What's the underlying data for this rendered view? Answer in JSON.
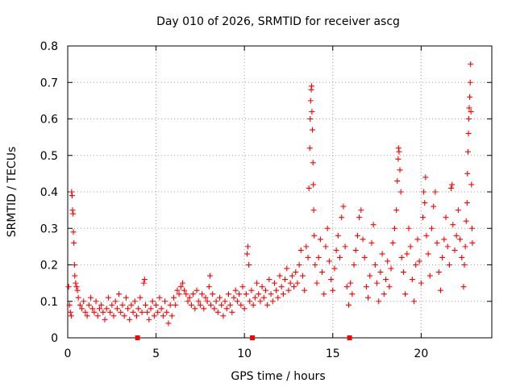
{
  "chart_data": {
    "type": "scatter",
    "title": "Day 010 of 2026, SRMTID for receiver ascg",
    "xlabel": "GPS time / hours",
    "ylabel": "SRMTID / TECUs",
    "xlim": [
      0,
      24
    ],
    "ylim": [
      0,
      0.8
    ],
    "xticks": [
      0,
      5,
      10,
      15,
      20
    ],
    "xtick_labels": [
      "0",
      "5",
      "10",
      "15",
      "20"
    ],
    "yticks": [
      0,
      0.1,
      0.2,
      0.3,
      0.4,
      0.5,
      0.6,
      0.7,
      0.8
    ],
    "ytick_labels": [
      "0",
      "0.1",
      "0.2",
      "0.3",
      "0.4",
      "0.5",
      "0.6",
      "0.7",
      "0.8"
    ],
    "grid": true,
    "marker": "plus",
    "color": "#ff0000",
    "series": [
      {
        "name": "SRMTID",
        "points": [
          [
            0.05,
            0.14
          ],
          [
            0.1,
            0.09
          ],
          [
            0.15,
            0.07
          ],
          [
            0.2,
            0.06
          ],
          [
            0.22,
            0.4
          ],
          [
            0.25,
            0.39
          ],
          [
            0.27,
            0.35
          ],
          [
            0.3,
            0.34
          ],
          [
            0.32,
            0.29
          ],
          [
            0.35,
            0.26
          ],
          [
            0.38,
            0.2
          ],
          [
            0.4,
            0.17
          ],
          [
            0.45,
            0.15
          ],
          [
            0.5,
            0.14
          ],
          [
            0.55,
            0.13
          ],
          [
            0.6,
            0.11
          ],
          [
            0.7,
            0.09
          ],
          [
            0.8,
            0.08
          ],
          [
            0.9,
            0.1
          ],
          [
            1.0,
            0.07
          ],
          [
            1.1,
            0.06
          ],
          [
            1.2,
            0.09
          ],
          [
            1.3,
            0.11
          ],
          [
            1.4,
            0.08
          ],
          [
            1.5,
            0.07
          ],
          [
            1.6,
            0.1
          ],
          [
            1.7,
            0.06
          ],
          [
            1.8,
            0.08
          ],
          [
            1.9,
            0.09
          ],
          [
            2.0,
            0.07
          ],
          [
            2.1,
            0.05
          ],
          [
            2.2,
            0.08
          ],
          [
            2.3,
            0.11
          ],
          [
            2.4,
            0.07
          ],
          [
            2.5,
            0.09
          ],
          [
            2.6,
            0.06
          ],
          [
            2.7,
            0.1
          ],
          [
            2.8,
            0.08
          ],
          [
            2.9,
            0.12
          ],
          [
            3.0,
            0.07
          ],
          [
            3.1,
            0.09
          ],
          [
            3.2,
            0.06
          ],
          [
            3.3,
            0.11
          ],
          [
            3.4,
            0.08
          ],
          [
            3.5,
            0.05
          ],
          [
            3.6,
            0.09
          ],
          [
            3.7,
            0.07
          ],
          [
            3.8,
            0.1
          ],
          [
            3.9,
            0.06
          ],
          [
            4.0,
            0.08
          ],
          [
            4.1,
            0.11
          ],
          [
            4.2,
            0.07
          ],
          [
            4.3,
            0.15
          ],
          [
            4.35,
            0.16
          ],
          [
            4.4,
            0.09
          ],
          [
            4.5,
            0.07
          ],
          [
            4.6,
            0.05
          ],
          [
            4.7,
            0.08
          ],
          [
            4.8,
            0.1
          ],
          [
            4.9,
            0.06
          ],
          [
            5.0,
            0.09
          ],
          [
            5.1,
            0.07
          ],
          [
            5.2,
            0.11
          ],
          [
            5.3,
            0.08
          ],
          [
            5.4,
            0.06
          ],
          [
            5.5,
            0.1
          ],
          [
            5.6,
            0.07
          ],
          [
            5.7,
            0.04
          ],
          [
            5.8,
            0.09
          ],
          [
            5.9,
            0.06
          ],
          [
            6.0,
            0.11
          ],
          [
            6.1,
            0.09
          ],
          [
            6.2,
            0.13
          ],
          [
            6.3,
            0.12
          ],
          [
            6.4,
            0.14
          ],
          [
            6.5,
            0.15
          ],
          [
            6.6,
            0.13
          ],
          [
            6.7,
            0.12
          ],
          [
            6.8,
            0.1
          ],
          [
            6.9,
            0.11
          ],
          [
            7.0,
            0.09
          ],
          [
            7.1,
            0.12
          ],
          [
            7.2,
            0.08
          ],
          [
            7.3,
            0.13
          ],
          [
            7.4,
            0.1
          ],
          [
            7.5,
            0.09
          ],
          [
            7.6,
            0.12
          ],
          [
            7.7,
            0.08
          ],
          [
            7.8,
            0.11
          ],
          [
            7.9,
            0.1
          ],
          [
            8.0,
            0.14
          ],
          [
            8.05,
            0.17
          ],
          [
            8.1,
            0.09
          ],
          [
            8.2,
            0.12
          ],
          [
            8.3,
            0.08
          ],
          [
            8.4,
            0.1
          ],
          [
            8.5,
            0.07
          ],
          [
            8.6,
            0.11
          ],
          [
            8.7,
            0.09
          ],
          [
            8.8,
            0.06
          ],
          [
            8.9,
            0.1
          ],
          [
            9.0,
            0.08
          ],
          [
            9.1,
            0.12
          ],
          [
            9.2,
            0.09
          ],
          [
            9.3,
            0.07
          ],
          [
            9.4,
            0.11
          ],
          [
            9.5,
            0.13
          ],
          [
            9.6,
            0.1
          ],
          [
            9.7,
            0.12
          ],
          [
            9.8,
            0.09
          ],
          [
            9.9,
            0.14
          ],
          [
            10.0,
            0.08
          ],
          [
            10.1,
            0.12
          ],
          [
            10.15,
            0.23
          ],
          [
            10.2,
            0.25
          ],
          [
            10.25,
            0.2
          ],
          [
            10.3,
            0.1
          ],
          [
            10.4,
            0.13
          ],
          [
            10.5,
            0.09
          ],
          [
            10.6,
            0.11
          ],
          [
            10.7,
            0.15
          ],
          [
            10.8,
            0.12
          ],
          [
            10.9,
            0.1
          ],
          [
            11.0,
            0.14
          ],
          [
            11.1,
            0.11
          ],
          [
            11.2,
            0.13
          ],
          [
            11.3,
            0.09
          ],
          [
            11.4,
            0.16
          ],
          [
            11.5,
            0.12
          ],
          [
            11.6,
            0.1
          ],
          [
            11.7,
            0.15
          ],
          [
            11.8,
            0.13
          ],
          [
            11.9,
            0.11
          ],
          [
            12.0,
            0.17
          ],
          [
            12.1,
            0.14
          ],
          [
            12.2,
            0.12
          ],
          [
            12.3,
            0.16
          ],
          [
            12.4,
            0.19
          ],
          [
            12.5,
            0.13
          ],
          [
            12.6,
            0.15
          ],
          [
            12.7,
            0.17
          ],
          [
            12.8,
            0.14
          ],
          [
            12.9,
            0.18
          ],
          [
            13.0,
            0.15
          ],
          [
            13.1,
            0.2
          ],
          [
            13.2,
            0.24
          ],
          [
            13.3,
            0.17
          ],
          [
            13.4,
            0.13
          ],
          [
            13.5,
            0.25
          ],
          [
            13.6,
            0.22
          ],
          [
            13.65,
            0.41
          ],
          [
            13.7,
            0.52
          ],
          [
            13.72,
            0.6
          ],
          [
            13.75,
            0.65
          ],
          [
            13.78,
            0.68
          ],
          [
            13.8,
            0.69
          ],
          [
            13.82,
            0.62
          ],
          [
            13.85,
            0.57
          ],
          [
            13.88,
            0.48
          ],
          [
            13.9,
            0.42
          ],
          [
            13.92,
            0.35
          ],
          [
            13.95,
            0.28
          ],
          [
            14.0,
            0.2
          ],
          [
            14.1,
            0.15
          ],
          [
            14.2,
            0.22
          ],
          [
            14.3,
            0.27
          ],
          [
            14.4,
            0.18
          ],
          [
            14.5,
            0.12
          ],
          [
            14.6,
            0.25
          ],
          [
            14.7,
            0.3
          ],
          [
            14.8,
            0.21
          ],
          [
            14.9,
            0.16
          ],
          [
            15.0,
            0.13
          ],
          [
            15.1,
            0.19
          ],
          [
            15.2,
            0.24
          ],
          [
            15.3,
            0.28
          ],
          [
            15.4,
            0.22
          ],
          [
            15.5,
            0.33
          ],
          [
            15.6,
            0.36
          ],
          [
            15.7,
            0.25
          ],
          [
            15.8,
            0.14
          ],
          [
            15.9,
            0.09
          ],
          [
            16.0,
            0.15
          ],
          [
            16.1,
            0.12
          ],
          [
            16.2,
            0.2
          ],
          [
            16.3,
            0.24
          ],
          [
            16.4,
            0.28
          ],
          [
            16.5,
            0.33
          ],
          [
            16.6,
            0.35
          ],
          [
            16.7,
            0.27
          ],
          [
            16.8,
            0.22
          ],
          [
            16.9,
            0.14
          ],
          [
            17.0,
            0.11
          ],
          [
            17.1,
            0.17
          ],
          [
            17.2,
            0.26
          ],
          [
            17.3,
            0.31
          ],
          [
            17.4,
            0.2
          ],
          [
            17.5,
            0.15
          ],
          [
            17.6,
            0.1
          ],
          [
            17.7,
            0.18
          ],
          [
            17.8,
            0.23
          ],
          [
            17.9,
            0.12
          ],
          [
            18.0,
            0.16
          ],
          [
            18.1,
            0.21
          ],
          [
            18.2,
            0.14
          ],
          [
            18.3,
            0.19
          ],
          [
            18.4,
            0.26
          ],
          [
            18.5,
            0.3
          ],
          [
            18.6,
            0.35
          ],
          [
            18.65,
            0.43
          ],
          [
            18.7,
            0.49
          ],
          [
            18.72,
            0.52
          ],
          [
            18.75,
            0.51
          ],
          [
            18.8,
            0.46
          ],
          [
            18.85,
            0.4
          ],
          [
            18.9,
            0.22
          ],
          [
            19.0,
            0.18
          ],
          [
            19.1,
            0.12
          ],
          [
            19.2,
            0.23
          ],
          [
            19.3,
            0.3
          ],
          [
            19.4,
            0.25
          ],
          [
            19.5,
            0.16
          ],
          [
            19.6,
            0.1
          ],
          [
            19.7,
            0.2
          ],
          [
            19.8,
            0.27
          ],
          [
            19.9,
            0.21
          ],
          [
            20.0,
            0.15
          ],
          [
            20.1,
            0.33
          ],
          [
            20.15,
            0.4
          ],
          [
            20.2,
            0.37
          ],
          [
            20.25,
            0.44
          ],
          [
            20.3,
            0.28
          ],
          [
            20.4,
            0.23
          ],
          [
            20.5,
            0.17
          ],
          [
            20.6,
            0.3
          ],
          [
            20.7,
            0.36
          ],
          [
            20.8,
            0.4
          ],
          [
            20.9,
            0.26
          ],
          [
            21.0,
            0.18
          ],
          [
            21.1,
            0.13
          ],
          [
            21.2,
            0.22
          ],
          [
            21.3,
            0.27
          ],
          [
            21.4,
            0.33
          ],
          [
            21.5,
            0.25
          ],
          [
            21.6,
            0.2
          ],
          [
            21.7,
            0.41
          ],
          [
            21.75,
            0.42
          ],
          [
            21.8,
            0.31
          ],
          [
            21.9,
            0.24
          ],
          [
            22.0,
            0.28
          ],
          [
            22.1,
            0.35
          ],
          [
            22.2,
            0.27
          ],
          [
            22.3,
            0.22
          ],
          [
            22.4,
            0.14
          ],
          [
            22.45,
            0.2
          ],
          [
            22.5,
            0.25
          ],
          [
            22.55,
            0.32
          ],
          [
            22.6,
            0.37
          ],
          [
            22.62,
            0.45
          ],
          [
            22.65,
            0.51
          ],
          [
            22.68,
            0.56
          ],
          [
            22.7,
            0.6
          ],
          [
            22.72,
            0.63
          ],
          [
            22.75,
            0.66
          ],
          [
            22.78,
            0.7
          ],
          [
            22.8,
            0.75
          ],
          [
            22.82,
            0.62
          ],
          [
            22.85,
            0.42
          ],
          [
            22.88,
            0.3
          ],
          [
            22.9,
            0.26
          ]
        ]
      }
    ],
    "axis_markers_x": [
      3.95,
      10.45,
      15.95
    ]
  }
}
